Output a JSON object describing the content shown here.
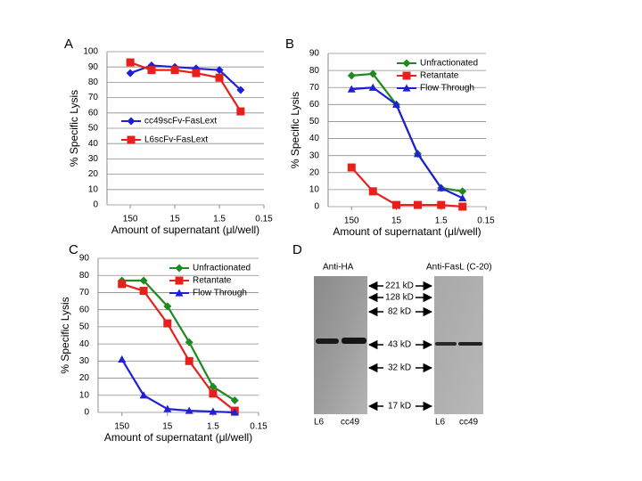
{
  "chart_data": [
    {
      "type": "line",
      "label": "A",
      "xlabel": "Amount of supernatant (μl/well)",
      "ylabel": "% Specific Lysis",
      "x": [
        150,
        50,
        15,
        5,
        1.5,
        0.5
      ],
      "xlim": [
        500,
        0.15
      ],
      "xticks": [
        150,
        15,
        1.5,
        0.15
      ],
      "log_x": true,
      "ylim": [
        0,
        100
      ],
      "yticks": [
        0,
        10,
        20,
        30,
        40,
        50,
        60,
        70,
        80,
        90,
        100
      ],
      "grid": true,
      "legend": "center left",
      "series": [
        {
          "name": "cc49scFv-FasLext",
          "color": "#1f1fd6",
          "marker": "diamond",
          "values": [
            86,
            91,
            90,
            89,
            88,
            75
          ]
        },
        {
          "name": "L6scFv-FasLext",
          "color": "#e8201c",
          "marker": "square",
          "values": [
            93,
            88,
            88,
            86,
            83,
            61
          ]
        }
      ]
    },
    {
      "type": "line",
      "label": "B",
      "xlabel": "Amount of supernatant (μl/well)",
      "ylabel": "% Specific Lysis",
      "x": [
        150,
        50,
        15,
        5,
        1.5,
        0.5
      ],
      "xlim": [
        500,
        0.15
      ],
      "xticks": [
        150,
        15,
        1.5,
        0.15
      ],
      "log_x": true,
      "ylim": [
        0,
        90
      ],
      "yticks": [
        0,
        10,
        20,
        30,
        40,
        50,
        60,
        70,
        80,
        90
      ],
      "grid": true,
      "legend": "upper right",
      "series": [
        {
          "name": "Unfractionated",
          "color": "#1f8a1f",
          "marker": "diamond",
          "values": [
            77,
            78,
            60,
            31,
            11,
            9
          ]
        },
        {
          "name": "Retantate",
          "color": "#e8201c",
          "marker": "square",
          "values": [
            23,
            9,
            1,
            1,
            1,
            0
          ]
        },
        {
          "name": "Flow Through",
          "color": "#1f1fd6",
          "marker": "triangle",
          "values": [
            69,
            70,
            60,
            31,
            11,
            5
          ]
        }
      ]
    },
    {
      "type": "line",
      "label": "C",
      "xlabel": "Amount of supernatant (μl/well)",
      "ylabel": "% Specific Lysis",
      "x": [
        150,
        50,
        15,
        5,
        1.5,
        0.5
      ],
      "xlim": [
        500,
        0.15
      ],
      "xticks": [
        150,
        15,
        1.5,
        0.15
      ],
      "log_x": true,
      "ylim": [
        0,
        90
      ],
      "yticks": [
        0,
        10,
        20,
        30,
        40,
        50,
        60,
        70,
        80,
        90
      ],
      "grid": true,
      "legend": "upper right",
      "series": [
        {
          "name": "Unfractionated",
          "color": "#1f8a1f",
          "marker": "diamond",
          "values": [
            77,
            77,
            62,
            41,
            15,
            7
          ]
        },
        {
          "name": "Retantate",
          "color": "#e8201c",
          "marker": "square",
          "values": [
            75,
            71,
            52,
            30,
            11,
            1
          ]
        },
        {
          "name": "Flow Through",
          "color": "#1f1fd6",
          "marker": "triangle",
          "values": [
            31,
            10,
            2,
            1,
            0.5,
            0
          ]
        }
      ]
    }
  ],
  "blot": {
    "label": "D",
    "left_title": "Anti-HA",
    "right_title": "Anti-FasL (C-20)",
    "markers": [
      "221 kD",
      "128 kD",
      "82 kD",
      "43 kD",
      "32 kD",
      "17 kD"
    ],
    "left_lanes": [
      "L6",
      "cc49"
    ],
    "right_lanes": [
      "L6",
      "cc49"
    ]
  }
}
